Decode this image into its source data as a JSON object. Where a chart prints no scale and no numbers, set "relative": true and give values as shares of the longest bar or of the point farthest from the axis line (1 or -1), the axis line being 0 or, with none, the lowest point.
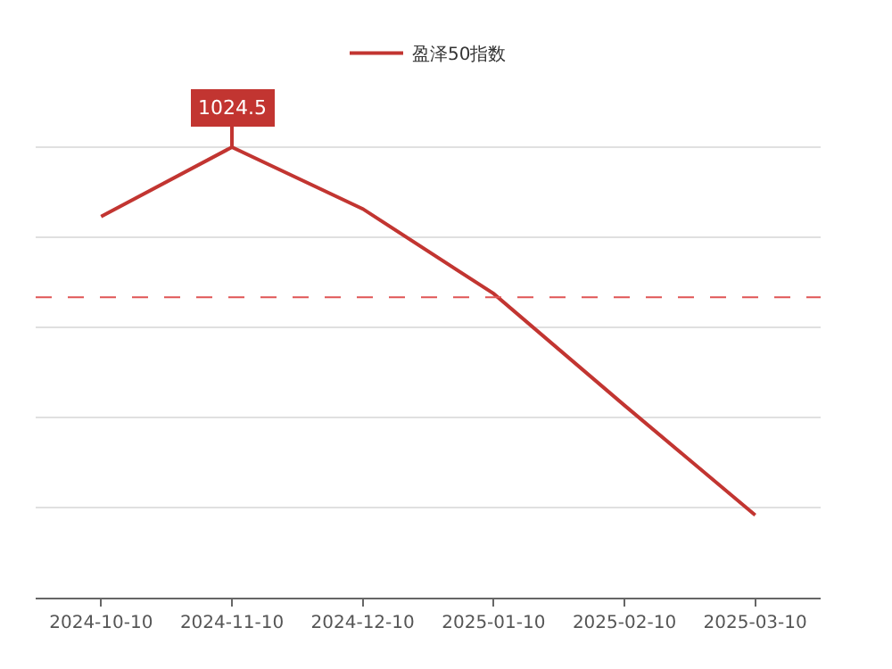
{
  "chart_data": {
    "type": "line",
    "relative": true,
    "categories": [
      "2024-10-10",
      "2024-11-10",
      "2024-12-10",
      "2025-01-10",
      "2025-02-10",
      "2025-03-10"
    ],
    "series": [
      {
        "name": "盈泽50指数",
        "color": "#c23531",
        "values": [
          0.846,
          1,
          0.863,
          0.675,
          0.427,
          0.183
        ]
      }
    ],
    "annotations": [
      {
        "text": "1024.5",
        "x": "2024-11-10",
        "y": 1
      }
    ],
    "ref_lines": [
      {
        "axis": "y",
        "value": 0.667,
        "color": "#e05555",
        "line_style": "dashed"
      }
    ],
    "grid": "y",
    "legend": "top",
    "marker": "none",
    "line_style": "solid"
  }
}
